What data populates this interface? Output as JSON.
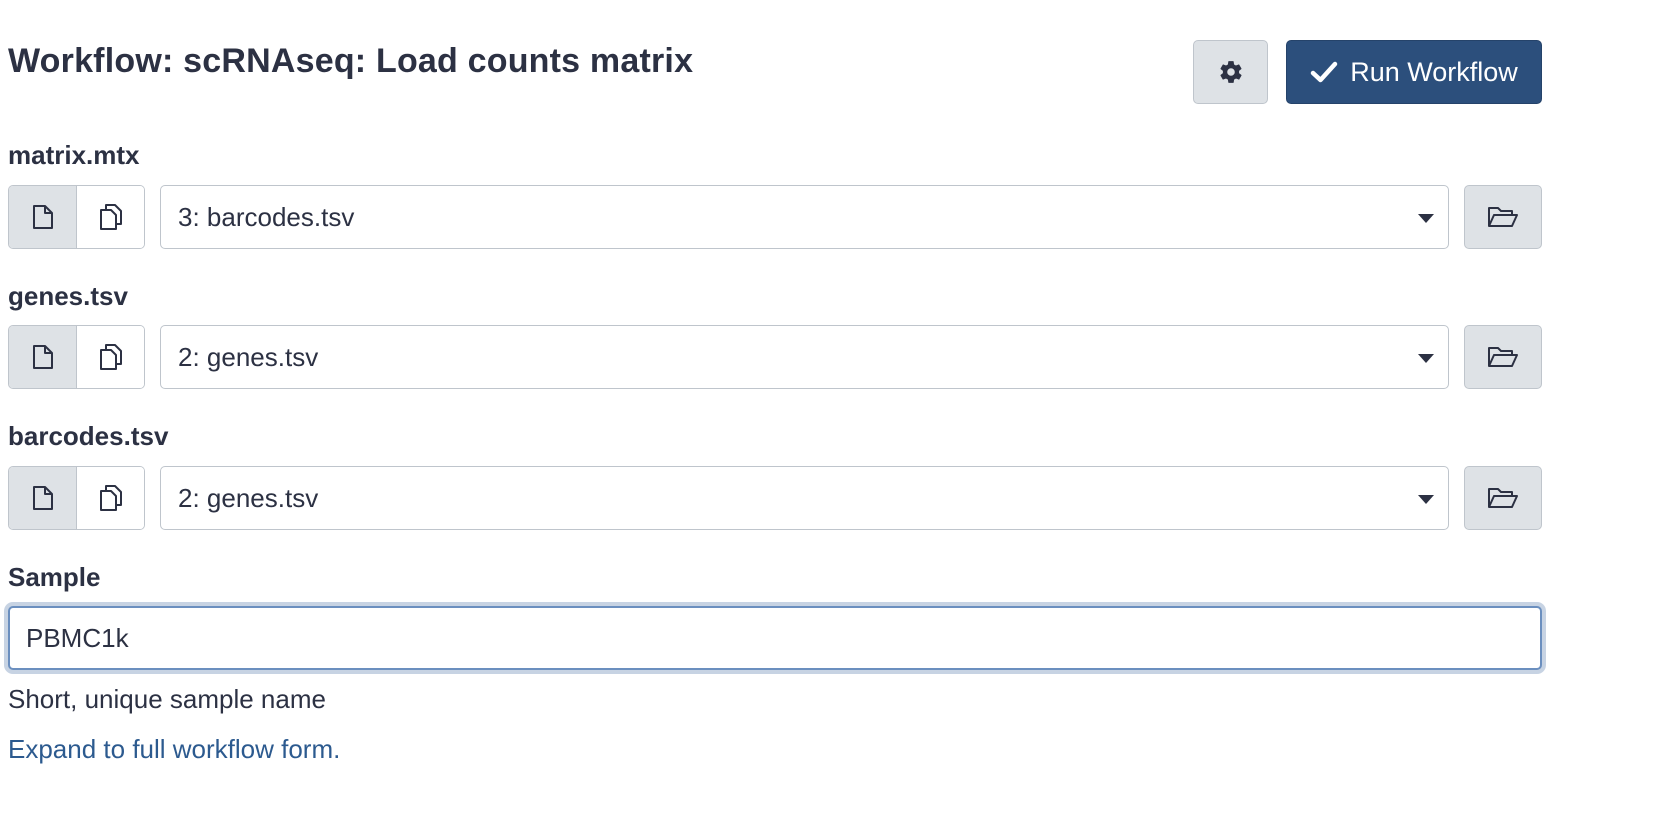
{
  "header": {
    "title": "Workflow: scRNAseq: Load counts matrix",
    "settings_icon": "gear-icon",
    "run_label": "Run Workflow",
    "run_icon": "check-icon"
  },
  "inputs": [
    {
      "label": "matrix.mtx",
      "selected": "3: barcodes.tsv"
    },
    {
      "label": "genes.tsv",
      "selected": "2: genes.tsv"
    },
    {
      "label": "barcodes.tsv",
      "selected": "2: genes.tsv"
    }
  ],
  "sample": {
    "label": "Sample",
    "value": "PBMC1k",
    "help": "Short, unique sample name"
  },
  "expand_link": "Expand to full workflow form.",
  "colors": {
    "primary": "#2c4f7c",
    "button_bg": "#dee2e6",
    "text": "#2c3143",
    "link": "#2c5a8f"
  }
}
